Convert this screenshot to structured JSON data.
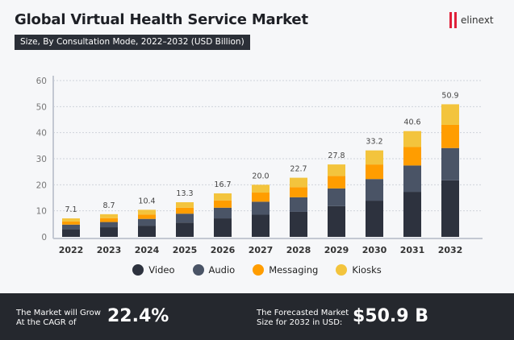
{
  "header": {
    "title": "Global Virtual Health Service Market",
    "subtitle": "Size, By Consultation Mode, 2022–2032 (USD Billion)",
    "logo_text": "elinext"
  },
  "chart_data": {
    "type": "bar",
    "stacked": true,
    "categories": [
      "2022",
      "2023",
      "2024",
      "2025",
      "2026",
      "2027",
      "2028",
      "2029",
      "2030",
      "2031",
      "2032"
    ],
    "series": [
      {
        "name": "Video",
        "color": "#2d323e",
        "values": [
          3.0,
          3.7,
          4.3,
          5.5,
          7.1,
          8.5,
          9.6,
          11.8,
          13.9,
          17.3,
          21.7
        ]
      },
      {
        "name": "Audio",
        "color": "#4a5466",
        "values": [
          1.7,
          2.0,
          2.6,
          3.4,
          4.1,
          5.0,
          5.6,
          6.8,
          8.3,
          10.1,
          12.4
        ]
      },
      {
        "name": "Messaging",
        "color": "#ff9d00",
        "values": [
          1.2,
          1.5,
          1.7,
          2.3,
          2.8,
          3.5,
          3.9,
          4.8,
          5.6,
          7.1,
          8.9
        ]
      },
      {
        "name": "Kiosks",
        "color": "#f3c43d",
        "values": [
          1.2,
          1.5,
          1.8,
          2.1,
          2.7,
          3.0,
          3.6,
          4.4,
          5.4,
          6.1,
          7.9
        ]
      }
    ],
    "totals": [
      "7.1",
      "8.7",
      "10.4",
      "13.3",
      "16.7",
      "20.0",
      "22.7",
      "27.8",
      "33.2",
      "40.6",
      "50.9"
    ],
    "yticks": [
      "0",
      "10",
      "20",
      "30",
      "40",
      "50",
      "60"
    ],
    "ylim": [
      0,
      60
    ],
    "grid": true,
    "legend": "bottom"
  },
  "footer": {
    "cagr_label_1": "The Market will Grow",
    "cagr_label_2": "At the CAGR of",
    "cagr_value": "22.4%",
    "forecast_label_1": "The Forecasted Market",
    "forecast_label_2": "Size for 2032 in USD:",
    "forecast_value": "$50.9 B"
  }
}
